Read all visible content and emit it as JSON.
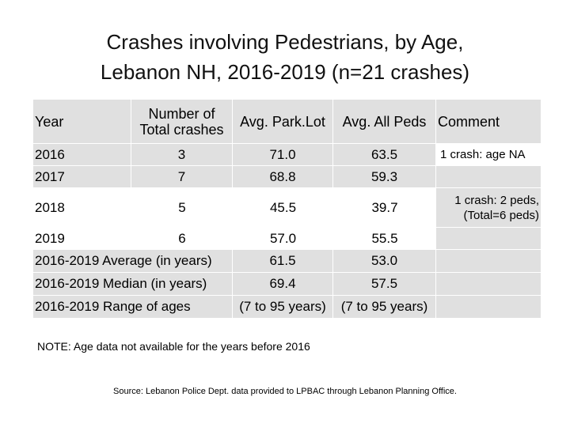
{
  "title_line1": "Crashes involving Pedestrians, by Age,",
  "title_line2": "Lebanon NH, 2016-2019 (n=21 crashes)",
  "headers": {
    "year": "Year",
    "total_line1": "Number of",
    "total_line2": "Total crashes",
    "avg_park": "Avg. Park.Lot",
    "avg_all": "Avg. All  Peds",
    "comment": "Comment"
  },
  "rows": [
    {
      "year": "2016",
      "total": "3",
      "park": "71.0",
      "all": "63.5",
      "comment1": "1 crash: age NA",
      "comment2": ""
    },
    {
      "year": "2017",
      "total": "7",
      "park": "68.8",
      "all": "59.3",
      "comment1": "",
      "comment2": ""
    },
    {
      "year": "2018",
      "total": "5",
      "park": "45.5",
      "all": "39.7",
      "comment1": "1 crash: 2 peds,",
      "comment2": "(Total=6 peds)"
    },
    {
      "year": "2019",
      "total": "6",
      "park": "57.0",
      "all": "55.5",
      "comment1": "",
      "comment2": ""
    }
  ],
  "summary": [
    {
      "label": "2016-2019 Average (in years)",
      "park": "61.5",
      "all": "53.0"
    },
    {
      "label": "2016-2019 Median (in years)",
      "park": "69.4",
      "all": "57.5"
    },
    {
      "label": "2016-2019 Range of ages",
      "park": "(7 to 95 years)",
      "all": "(7 to 95 years)"
    }
  ],
  "note": "NOTE: Age data not available for the years before 2016",
  "source": "Source: Lebanon Police Dept. data provided to LPBAC through Lebanon Planning Office.",
  "colors": {
    "shade": "#e0e0e0"
  }
}
